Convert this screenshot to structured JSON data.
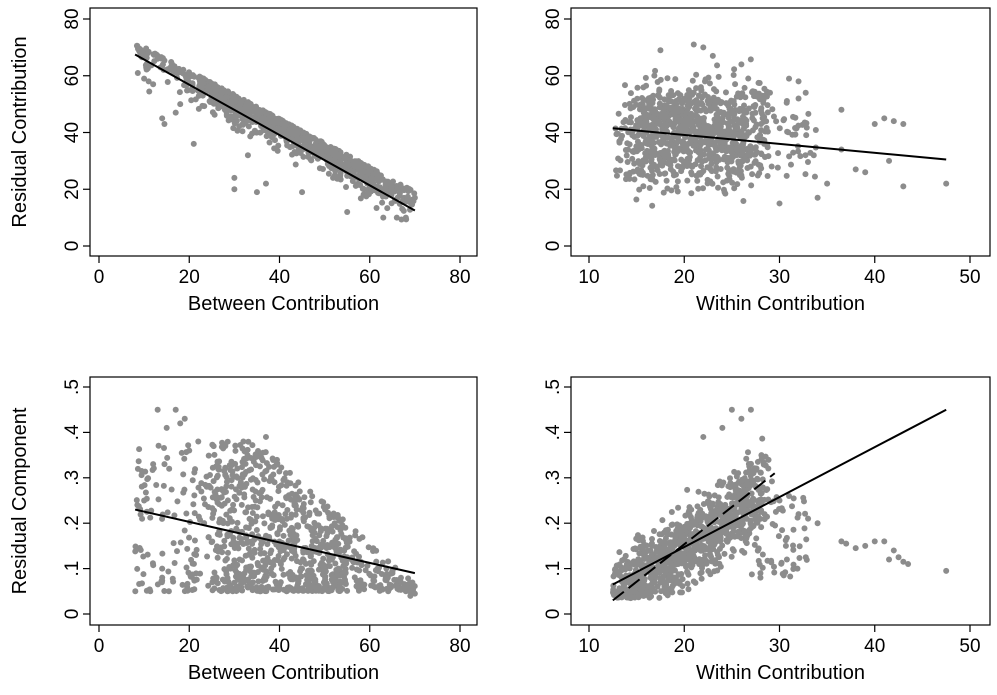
{
  "chart_data": [
    {
      "type": "scatter",
      "xlabel": "Between Contribution",
      "ylabel": "Residual Contribution",
      "xlim": [
        0,
        80
      ],
      "ylim": [
        0,
        80
      ],
      "xticks": [
        0,
        20,
        40,
        60,
        80
      ],
      "yticks": [
        0,
        20,
        40,
        60,
        80
      ],
      "xtick_labels": [
        "0",
        "20",
        "40",
        "60",
        "80"
      ],
      "ytick_labels": [
        "0",
        "20",
        "40",
        "60",
        "80"
      ],
      "point_color": "#8c8c8c",
      "line_color": "#000000",
      "points_summary": {
        "n": 1000,
        "x_range": [
          8,
          70
        ],
        "y_min_edge": [
          [
            8,
            60
          ],
          [
            15,
            40
          ],
          [
            30,
            28
          ],
          [
            50,
            16
          ],
          [
            70,
            9
          ]
        ],
        "y_max_edge": [
          [
            8,
            71
          ],
          [
            30,
            57
          ],
          [
            50,
            37
          ],
          [
            70,
            19
          ]
        ]
      },
      "points": [
        [
          8.5,
          70.5
        ],
        [
          9,
          69.5
        ],
        [
          10,
          59
        ],
        [
          11,
          58
        ],
        [
          12,
          57
        ],
        [
          13,
          66
        ],
        [
          14,
          45
        ],
        [
          14.5,
          43
        ],
        [
          16,
          63
        ],
        [
          17,
          47
        ],
        [
          18,
          50
        ],
        [
          21,
          36
        ],
        [
          23,
          53
        ],
        [
          30,
          24
        ],
        [
          30,
          20
        ],
        [
          33,
          32
        ],
        [
          35,
          19
        ],
        [
          37,
          22
        ],
        [
          45,
          19
        ],
        [
          55,
          12
        ],
        [
          63,
          10
        ],
        [
          66,
          10
        ],
        [
          68,
          10
        ],
        [
          70,
          17
        ]
      ],
      "lines": [
        {
          "style": "solid",
          "x": [
            8,
            70
          ],
          "y": [
            67.5,
            12.5
          ]
        }
      ],
      "grid": false,
      "legend": "none"
    },
    {
      "type": "scatter",
      "xlabel": "Within Contribution",
      "ylabel": "",
      "xlim": [
        10,
        50
      ],
      "ylim": [
        0,
        80
      ],
      "xticks": [
        10,
        20,
        30,
        40,
        50
      ],
      "yticks": [
        0,
        20,
        40,
        60,
        80
      ],
      "xtick_labels": [
        "10",
        "20",
        "30",
        "40",
        "50"
      ],
      "ytick_labels": [
        "0",
        "20",
        "40",
        "60",
        "80"
      ],
      "point_color": "#8c8c8c",
      "line_color": "#000000",
      "points_summary": {
        "n": 1000,
        "x_range": [
          12.5,
          47.5
        ],
        "y_range": [
          9,
          71
        ]
      },
      "points": [
        [
          17.5,
          69
        ],
        [
          21,
          71
        ],
        [
          22,
          70
        ],
        [
          23,
          67
        ],
        [
          26,
          64
        ],
        [
          31,
          59
        ],
        [
          32,
          58
        ],
        [
          32,
          52
        ],
        [
          29,
          54
        ],
        [
          36.5,
          48
        ],
        [
          38,
          27
        ],
        [
          39,
          26
        ],
        [
          40,
          43
        ],
        [
          41,
          45
        ],
        [
          41.5,
          30
        ],
        [
          42,
          44
        ],
        [
          43,
          43
        ],
        [
          43,
          21
        ],
        [
          47.5,
          22
        ],
        [
          30,
          15
        ],
        [
          34,
          17
        ],
        [
          35,
          22
        ],
        [
          36.5,
          34
        ]
      ],
      "lines": [
        {
          "style": "solid",
          "x": [
            12.5,
            47.5
          ],
          "y": [
            41.5,
            30.5
          ]
        }
      ],
      "grid": false,
      "legend": "none"
    },
    {
      "type": "scatter",
      "xlabel": "Between Contribution",
      "ylabel": "Residual Component",
      "xlim": [
        0,
        80
      ],
      "ylim": [
        0,
        0.5
      ],
      "xticks": [
        0,
        20,
        40,
        60,
        80
      ],
      "yticks": [
        0,
        0.1,
        0.2,
        0.3,
        0.4,
        0.5
      ],
      "xtick_labels": [
        "0",
        "20",
        "40",
        "60",
        "80"
      ],
      "ytick_labels": [
        "0",
        ".1",
        ".2",
        ".3",
        ".4",
        ".5"
      ],
      "point_color": "#8c8c8c",
      "line_color": "#000000",
      "points_summary": {
        "n": 1000,
        "x_range": [
          8,
          70
        ],
        "y_range": [
          0.04,
          0.45
        ]
      },
      "points": [
        [
          8.5,
          0.24
        ],
        [
          10,
          0.25
        ],
        [
          12,
          0.33
        ],
        [
          13,
          0.45
        ],
        [
          15,
          0.41
        ],
        [
          17,
          0.45
        ],
        [
          18,
          0.42
        ],
        [
          19,
          0.43
        ],
        [
          20,
          0.36
        ],
        [
          22,
          0.38
        ],
        [
          28,
          0.37
        ],
        [
          32,
          0.38
        ],
        [
          37,
          0.39
        ],
        [
          14,
          0.1
        ],
        [
          14,
          0.08
        ],
        [
          64,
          0.08
        ],
        [
          66,
          0.06
        ],
        [
          68,
          0.05
        ],
        [
          69,
          0.04
        ],
        [
          70,
          0.045
        ]
      ],
      "lines": [
        {
          "style": "solid",
          "x": [
            8,
            70
          ],
          "y": [
            0.23,
            0.09
          ]
        }
      ],
      "grid": false,
      "legend": "none"
    },
    {
      "type": "scatter",
      "xlabel": "Within Contribution",
      "ylabel": "",
      "xlim": [
        10,
        50
      ],
      "ylim": [
        0,
        0.5
      ],
      "xticks": [
        10,
        20,
        30,
        40,
        50
      ],
      "yticks": [
        0,
        0.1,
        0.2,
        0.3,
        0.4,
        0.5
      ],
      "xtick_labels": [
        "10",
        "20",
        "30",
        "40",
        "50"
      ],
      "ytick_labels": [
        "0",
        ".1",
        ".2",
        ".3",
        ".4",
        ".5"
      ],
      "point_color": "#8c8c8c",
      "line_color": "#000000",
      "points_summary": {
        "n": 1000,
        "x_range": [
          12.5,
          47.5
        ],
        "y_range": [
          0.03,
          0.45
        ]
      },
      "points": [
        [
          25,
          0.45
        ],
        [
          27,
          0.45
        ],
        [
          26,
          0.43
        ],
        [
          22,
          0.39
        ],
        [
          24,
          0.41
        ],
        [
          30,
          0.25
        ],
        [
          31,
          0.26
        ],
        [
          32,
          0.22
        ],
        [
          33,
          0.21
        ],
        [
          34,
          0.2
        ],
        [
          36.5,
          0.16
        ],
        [
          37,
          0.155
        ],
        [
          38,
          0.145
        ],
        [
          39,
          0.15
        ],
        [
          40,
          0.16
        ],
        [
          41,
          0.16
        ],
        [
          41.5,
          0.12
        ],
        [
          42,
          0.14
        ],
        [
          42.5,
          0.125
        ],
        [
          43,
          0.115
        ],
        [
          43.5,
          0.11
        ],
        [
          47.5,
          0.095
        ],
        [
          28,
          0.09
        ],
        [
          28,
          0.08
        ]
      ],
      "lines": [
        {
          "style": "solid",
          "x": [
            12.5,
            47.5
          ],
          "y": [
            0.065,
            0.45
          ]
        },
        {
          "style": "dashed",
          "x": [
            12.5,
            29.5
          ],
          "y": [
            0.03,
            0.31
          ]
        }
      ],
      "grid": false,
      "legend": "none"
    }
  ]
}
